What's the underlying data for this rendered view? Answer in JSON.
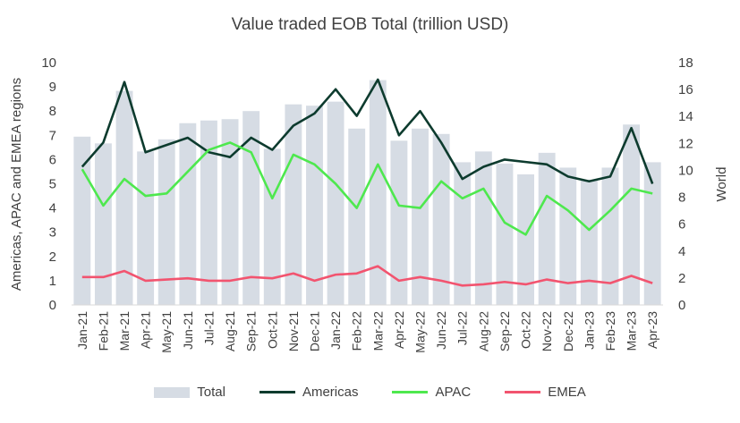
{
  "chart_data": {
    "type": "bar",
    "title": "Value traded EOB Total (trillion USD)",
    "ylabel_left": "Americas, APAC and EMEA regions",
    "ylabel_right": "World",
    "ylim_left": [
      0,
      10
    ],
    "ylim_right": [
      0,
      18
    ],
    "yticks_left": [
      "0",
      "1",
      "2",
      "3",
      "4",
      "5",
      "6",
      "7",
      "8",
      "9",
      "10"
    ],
    "yticks_right": [
      "0",
      "2",
      "4",
      "6",
      "8",
      "10",
      "12",
      "14",
      "16",
      "18"
    ],
    "grid": false,
    "legend_position": "bottom",
    "categories": [
      "Jan-21",
      "Feb-21",
      "Mar-21",
      "Apr-21",
      "May-21",
      "Jun-21",
      "Jul-21",
      "Aug-21",
      "Sep-21",
      "Oct-21",
      "Nov-21",
      "Dec-21",
      "Jan-22",
      "Feb-22",
      "Mar-22",
      "Apr-22",
      "May-22",
      "Jun-22",
      "Jul-22",
      "Aug-22",
      "Sep-22",
      "Oct-22",
      "Nov-22",
      "Dec-22",
      "Jan-23",
      "Feb-23",
      "Mar-23",
      "Apr-23"
    ],
    "series": [
      {
        "name": "Total",
        "type": "bar",
        "axis": "right",
        "color": "#d6dce4",
        "values": [
          12.5,
          12.0,
          15.9,
          11.4,
          12.3,
          13.5,
          13.7,
          13.8,
          14.4,
          11.6,
          14.9,
          14.8,
          15.1,
          13.1,
          16.7,
          12.2,
          13.1,
          12.7,
          10.6,
          11.4,
          10.5,
          9.7,
          11.3,
          10.2,
          9.3,
          10.2,
          13.4,
          10.6
        ]
      },
      {
        "name": "Americas",
        "type": "line",
        "axis": "left",
        "color": "#0d3b2e",
        "values": [
          5.7,
          6.7,
          9.2,
          6.3,
          6.6,
          6.9,
          6.3,
          6.1,
          6.9,
          6.4,
          7.4,
          7.9,
          8.9,
          7.8,
          9.3,
          7.0,
          8.0,
          6.7,
          5.2,
          5.7,
          6.0,
          5.9,
          5.8,
          5.3,
          5.1,
          5.3,
          7.3,
          5.0
        ]
      },
      {
        "name": "APAC",
        "type": "line",
        "axis": "left",
        "color": "#4ee84e",
        "values": [
          5.6,
          4.1,
          5.2,
          4.5,
          4.6,
          5.5,
          6.4,
          6.7,
          6.3,
          4.4,
          6.2,
          5.8,
          5.0,
          4.0,
          5.8,
          4.1,
          4.0,
          5.1,
          4.4,
          4.8,
          3.4,
          2.9,
          4.5,
          3.9,
          3.1,
          3.9,
          4.8,
          4.6
        ]
      },
      {
        "name": "EMEA",
        "type": "line",
        "axis": "left",
        "color": "#f2546f",
        "values": [
          1.15,
          1.15,
          1.4,
          1.0,
          1.05,
          1.1,
          1.0,
          1.0,
          1.15,
          1.1,
          1.3,
          1.0,
          1.25,
          1.3,
          1.6,
          1.0,
          1.15,
          1.0,
          0.8,
          0.85,
          0.95,
          0.85,
          1.05,
          0.9,
          1.0,
          0.9,
          1.2,
          0.9
        ]
      }
    ]
  }
}
